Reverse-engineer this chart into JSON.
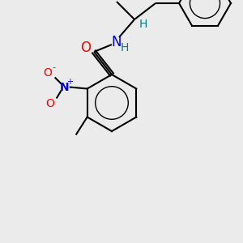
{
  "background_color": "#ebebeb",
  "bond_color": "#000000",
  "fig_width": 3.0,
  "fig_height": 3.0,
  "dpi": 100,
  "atoms": {
    "O_carbonyl": {
      "label": "O",
      "color": "#ff0000"
    },
    "N_amide": {
      "label": "N",
      "color": "#0000cc"
    },
    "H_amide": {
      "label": "H",
      "color": "#008080"
    },
    "H_chiral": {
      "label": "H",
      "color": "#008080"
    },
    "NO2_N": {
      "label": "N",
      "color": "#0000cc"
    },
    "NO2_O1": {
      "label": "O",
      "color": "#ff0000"
    },
    "NO2_O2": {
      "label": "O",
      "color": "#ff0000"
    },
    "NO2_plus": {
      "label": "+",
      "color": "#0000cc"
    },
    "NO2_minus1": {
      "label": "-",
      "color": "#ff0000"
    },
    "NO2_minus2": {
      "label": "-",
      "color": "#ff0000"
    }
  }
}
